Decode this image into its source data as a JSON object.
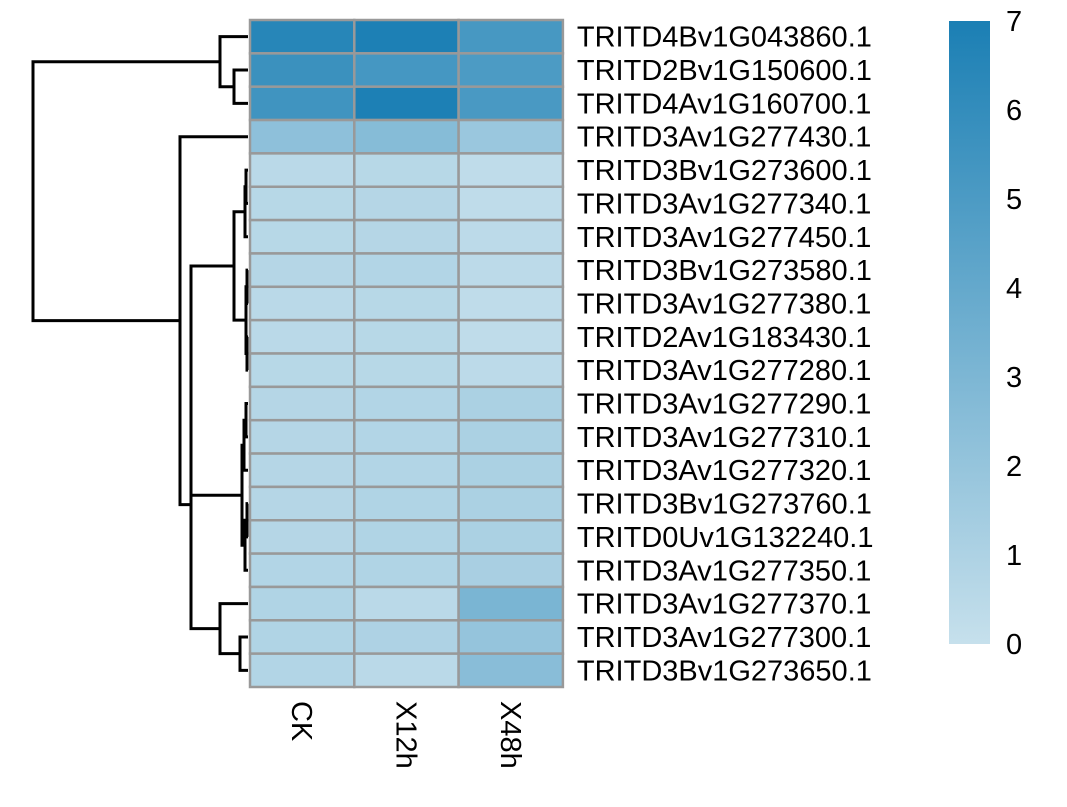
{
  "chart_data": {
    "type": "heatmap",
    "columns": [
      "CK",
      "X12h",
      "X48h"
    ],
    "rows": [
      "TRITD4Bv1G043860.1",
      "TRITD2Bv1G150600.1",
      "TRITD4Av1G160700.1",
      "TRITD3Av1G277430.1",
      "TRITD3Bv1G273600.1",
      "TRITD3Av1G277340.1",
      "TRITD3Av1G277450.1",
      "TRITD3Bv1G273580.1",
      "TRITD3Av1G277380.1",
      "TRITD2Av1G183430.1",
      "TRITD3Av1G277280.1",
      "TRITD3Av1G277290.1",
      "TRITD3Av1G277310.1",
      "TRITD3Av1G277320.1",
      "TRITD3Bv1G273760.1",
      "TRITD0Uv1G132240.1",
      "TRITD3Av1G277350.1",
      "TRITD3Av1G277370.1",
      "TRITD3Av1G277300.1",
      "TRITD3Bv1G273650.1"
    ],
    "values": [
      [
        6.5,
        6.9,
        5.2
      ],
      [
        5.7,
        5.3,
        5.0
      ],
      [
        5.5,
        6.9,
        5.1
      ],
      [
        2.3,
        2.6,
        1.8
      ],
      [
        0.5,
        0.6,
        0.3
      ],
      [
        0.6,
        0.7,
        0.3
      ],
      [
        0.6,
        0.7,
        0.4
      ],
      [
        0.7,
        0.8,
        0.4
      ],
      [
        0.5,
        0.6,
        0.3
      ],
      [
        0.5,
        0.6,
        0.3
      ],
      [
        0.6,
        0.6,
        0.4
      ],
      [
        0.7,
        0.8,
        1.1
      ],
      [
        0.7,
        0.8,
        1.1
      ],
      [
        0.7,
        0.8,
        1.1
      ],
      [
        0.7,
        0.9,
        1.1
      ],
      [
        0.7,
        0.9,
        1.1
      ],
      [
        0.8,
        0.9,
        1.2
      ],
      [
        0.9,
        0.5,
        3.1
      ],
      [
        0.9,
        1.0,
        2.0
      ],
      [
        0.8,
        0.5,
        2.5
      ]
    ],
    "legend": {
      "ticks": [
        0,
        1,
        2,
        3,
        4,
        5,
        6,
        7
      ],
      "range": [
        0,
        7
      ],
      "color_low": "#c6e0ec",
      "color_high": "#1b7fb4"
    },
    "row_dendrogram": true,
    "cell_border_color": "#999999"
  }
}
